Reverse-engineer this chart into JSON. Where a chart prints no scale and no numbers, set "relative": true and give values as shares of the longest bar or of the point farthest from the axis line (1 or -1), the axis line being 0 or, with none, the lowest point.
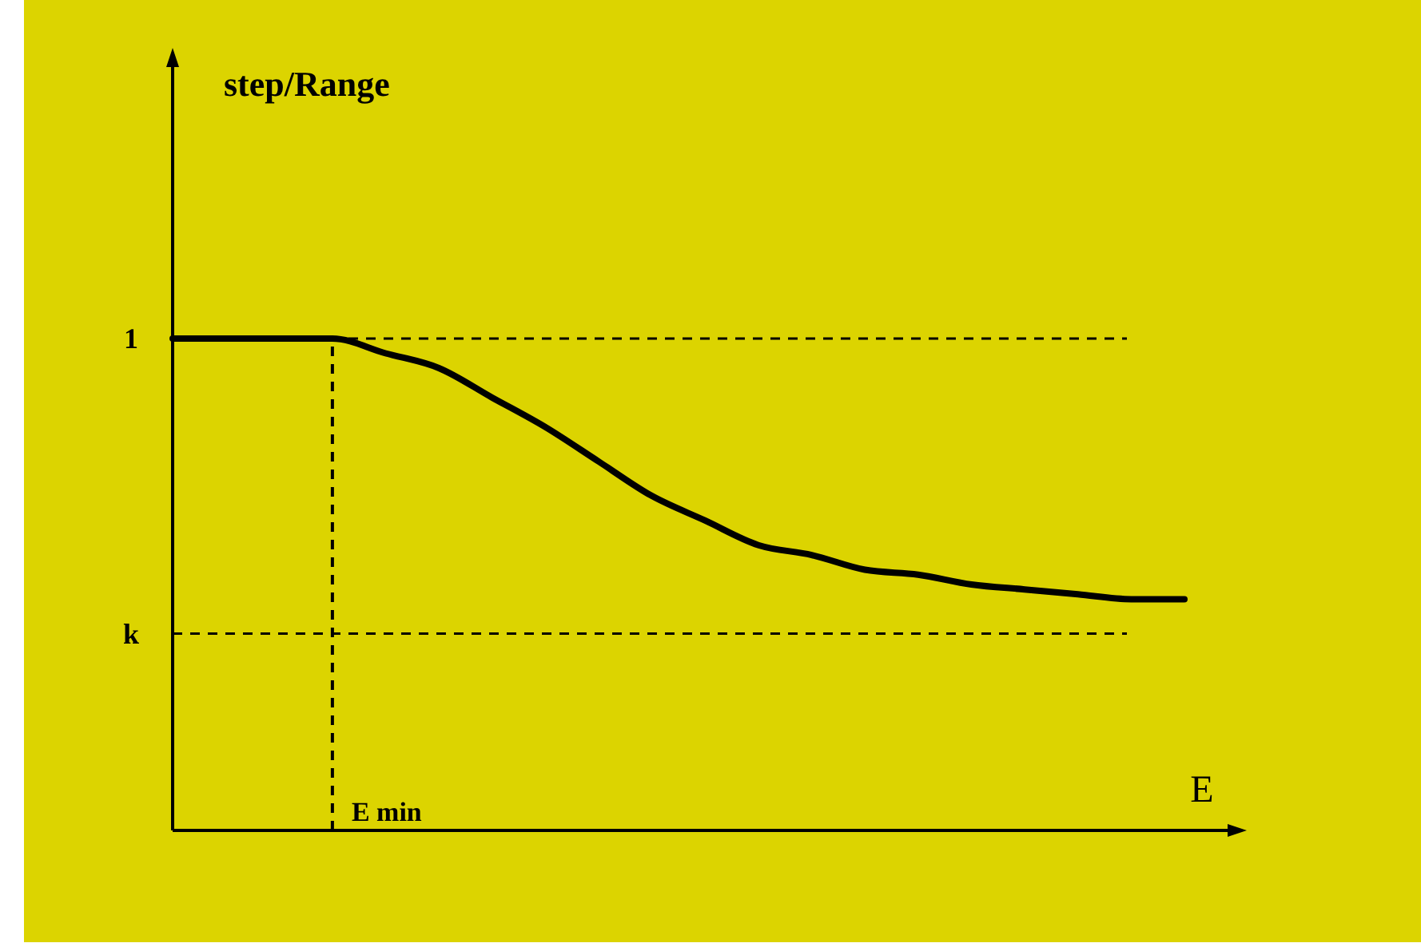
{
  "chart_data": {
    "type": "line",
    "relative": true,
    "xlabel": "E",
    "categories": [
      null,
      null,
      null,
      null,
      null,
      null,
      null,
      null,
      null,
      null,
      null,
      null,
      null,
      null,
      null,
      null,
      null,
      null,
      null,
      null
    ],
    "series": [
      {
        "color": "#000000",
        "values": [
          1,
          1,
          1,
          1,
          0.97,
          0.94,
          0.88,
          0.82,
          0.75,
          0.68,
          0.63,
          0.58,
          0.56,
          0.53,
          0.52,
          0.5,
          0.49,
          0.48,
          0.47,
          0.47
        ]
      }
    ],
    "marker": "none",
    "line_style": "solid",
    "ref_lines": [
      {
        "axis": "y",
        "value": 1,
        "label": "1",
        "line_style": "dashed",
        "color": "#000000"
      },
      {
        "axis": "y",
        "value": 0.4,
        "label": "k",
        "line_style": "dashed",
        "color": "#000000"
      }
    ],
    "annotations": [
      "step/Range",
      "E min"
    ]
  }
}
